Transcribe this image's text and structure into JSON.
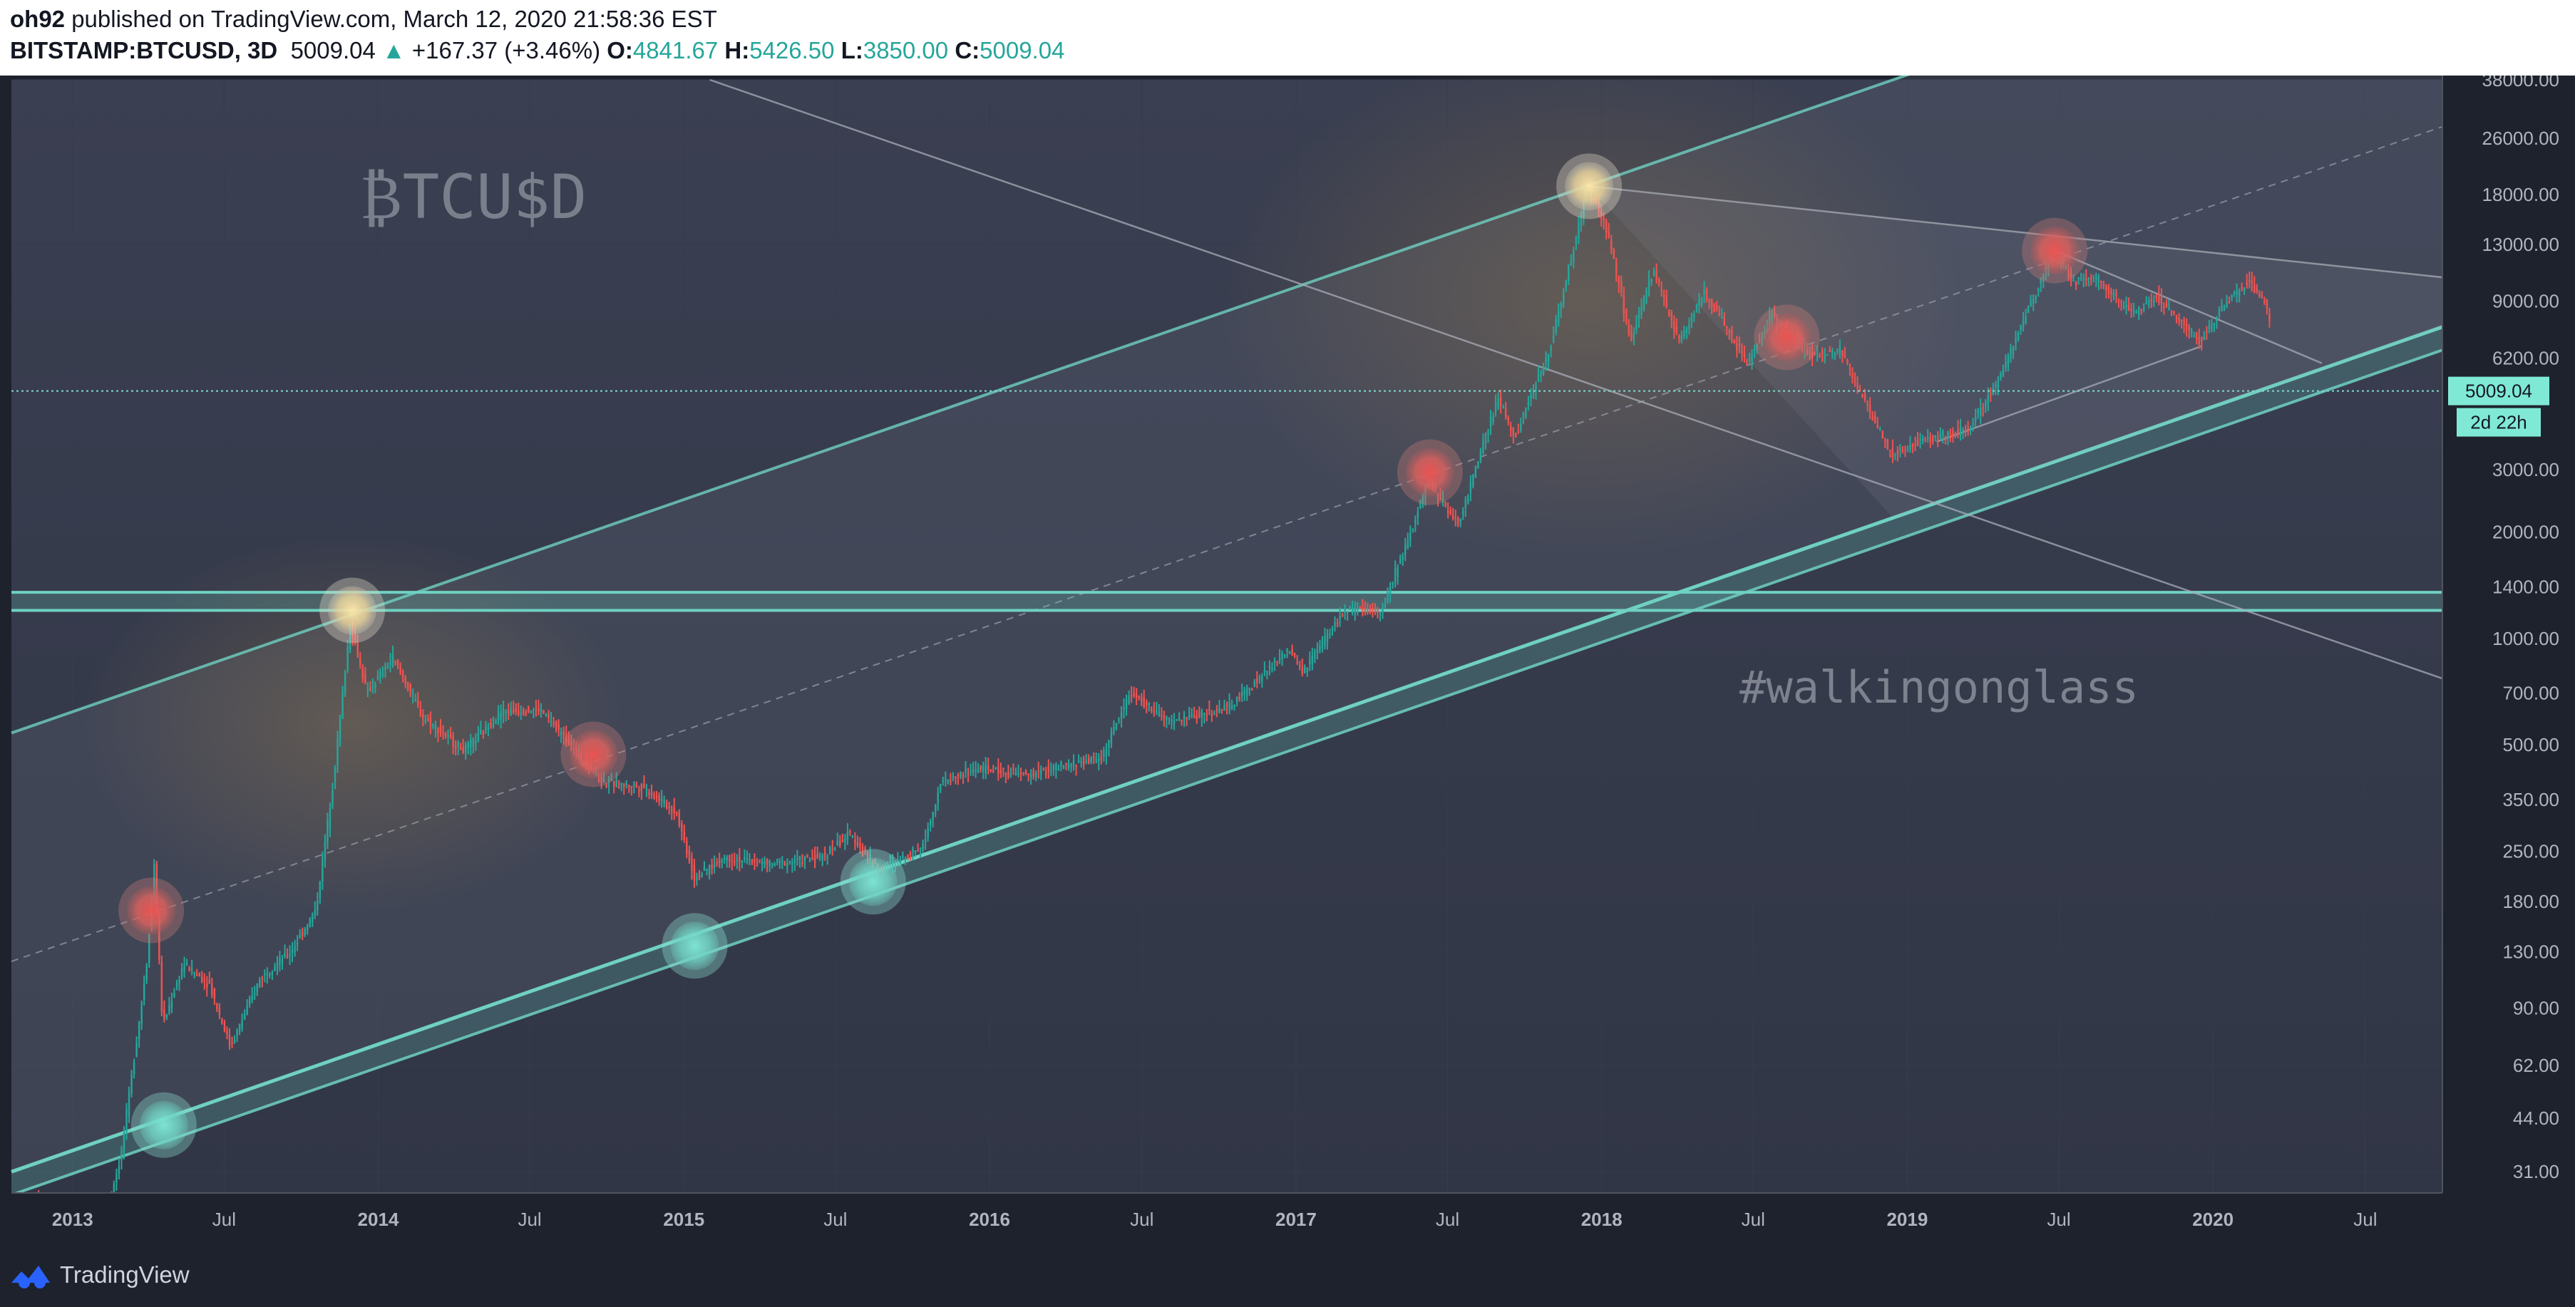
{
  "header": {
    "author": "oh92",
    "published_text": "published on TradingView.com, March 12, 2020 21:58:36 EST",
    "symbol": "BITSTAMP:BTCUSD, 3D",
    "last": "5009.04",
    "change": "+167.37 (+3.46%)",
    "o_label": "O:",
    "o_value": "4841.67",
    "h_label": "H:",
    "h_value": "5426.50",
    "l_label": "L:",
    "l_value": "3850.00",
    "c_label": "C:",
    "c_value": "5009.04"
  },
  "footer": {
    "brand": "TradingView",
    "logo_icon": "tradingview-logo-icon"
  },
  "chart_data": {
    "type": "candlestick",
    "symbol": "BTCUSD",
    "watermark": "₿TCU$D",
    "annotation": "#walkingonglass",
    "y_scale": "log",
    "ylim": [
      27,
      38000
    ],
    "xlim": [
      "2012-10-20",
      "2020-10-01"
    ],
    "y_ticks": [
      "38000.00",
      "26000.00",
      "18000.00",
      "13000.00",
      "9000.00",
      "6200.00",
      "3000.00",
      "2000.00",
      "1400.00",
      "1000.00",
      "700.00",
      "500.00",
      "350.00",
      "250.00",
      "180.00",
      "130.00",
      "90.00",
      "62.00",
      "44.00",
      "31.00"
    ],
    "x_ticks": [
      {
        "date": "2013-01-01",
        "label": "2013"
      },
      {
        "date": "2013-07-01",
        "label": "Jul"
      },
      {
        "date": "2014-01-01",
        "label": "2014"
      },
      {
        "date": "2014-07-01",
        "label": "Jul"
      },
      {
        "date": "2015-01-01",
        "label": "2015"
      },
      {
        "date": "2015-07-01",
        "label": "Jul"
      },
      {
        "date": "2016-01-01",
        "label": "2016"
      },
      {
        "date": "2016-07-01",
        "label": "Jul"
      },
      {
        "date": "2017-01-01",
        "label": "2017"
      },
      {
        "date": "2017-07-01",
        "label": "Jul"
      },
      {
        "date": "2018-01-01",
        "label": "2018"
      },
      {
        "date": "2018-07-01",
        "label": "Jul"
      },
      {
        "date": "2019-01-01",
        "label": "2019"
      },
      {
        "date": "2019-07-01",
        "label": "Jul"
      },
      {
        "date": "2020-01-01",
        "label": "2020"
      },
      {
        "date": "2020-07-01",
        "label": "Jul"
      }
    ],
    "last_price": 5009.04,
    "last_price_label": "5009.04",
    "countdown_label": "2d 22h",
    "price_path": [
      [
        "2012-11-20",
        27
      ],
      [
        "2013-01-15",
        14
      ],
      [
        "2013-03-01",
        34
      ],
      [
        "2013-04-01",
        120
      ],
      [
        "2013-04-10",
        230
      ],
      [
        "2013-04-20",
        80
      ],
      [
        "2013-05-15",
        120
      ],
      [
        "2013-06-15",
        105
      ],
      [
        "2013-07-10",
        70
      ],
      [
        "2013-08-15",
        110
      ],
      [
        "2013-09-20",
        130
      ],
      [
        "2013-10-20",
        170
      ],
      [
        "2013-11-10",
        400
      ],
      [
        "2013-11-30",
        1100
      ],
      [
        "2013-12-20",
        700
      ],
      [
        "2014-01-20",
        880
      ],
      [
        "2014-02-25",
        600
      ],
      [
        "2014-04-15",
        480
      ],
      [
        "2014-05-30",
        620
      ],
      [
        "2014-07-15",
        630
      ],
      [
        "2014-08-20",
        500
      ],
      [
        "2014-09-30",
        390
      ],
      [
        "2014-11-15",
        380
      ],
      [
        "2014-12-25",
        320
      ],
      [
        "2015-01-15",
        210
      ],
      [
        "2015-02-20",
        240
      ],
      [
        "2015-04-15",
        230
      ],
      [
        "2015-06-15",
        240
      ],
      [
        "2015-07-20",
        280
      ],
      [
        "2015-08-25",
        220
      ],
      [
        "2015-10-15",
        260
      ],
      [
        "2015-11-05",
        390
      ],
      [
        "2015-12-20",
        430
      ],
      [
        "2016-02-15",
        410
      ],
      [
        "2016-05-15",
        460
      ],
      [
        "2016-06-18",
        700
      ],
      [
        "2016-08-05",
        580
      ],
      [
        "2016-10-15",
        640
      ],
      [
        "2016-12-25",
        930
      ],
      [
        "2017-01-10",
        800
      ],
      [
        "2017-03-01",
        1200
      ],
      [
        "2017-04-15",
        1200
      ],
      [
        "2017-06-10",
        2800
      ],
      [
        "2017-07-15",
        2100
      ],
      [
        "2017-09-01",
        4800
      ],
      [
        "2017-09-20",
        3700
      ],
      [
        "2017-11-01",
        6500
      ],
      [
        "2017-12-17",
        19000
      ],
      [
        "2018-01-10",
        14000
      ],
      [
        "2018-02-06",
        6900
      ],
      [
        "2018-03-05",
        11000
      ],
      [
        "2018-04-05",
        6900
      ],
      [
        "2018-05-05",
        9600
      ],
      [
        "2018-06-25",
        6000
      ],
      [
        "2018-07-25",
        8200
      ],
      [
        "2018-09-10",
        6300
      ],
      [
        "2018-10-15",
        6500
      ],
      [
        "2018-11-20",
        4300
      ],
      [
        "2018-12-15",
        3300
      ],
      [
        "2019-01-15",
        3600
      ],
      [
        "2019-03-15",
        3900
      ],
      [
        "2019-04-20",
        5300
      ],
      [
        "2019-06-26",
        12500
      ],
      [
        "2019-07-20",
        10200
      ],
      [
        "2019-08-15",
        10500
      ],
      [
        "2019-09-30",
        8300
      ],
      [
        "2019-10-26",
        9300
      ],
      [
        "2019-12-18",
        6900
      ],
      [
        "2020-01-15",
        8700
      ],
      [
        "2020-02-13",
        10200
      ],
      [
        "2020-03-05",
        9000
      ],
      [
        "2020-03-10",
        7900
      ],
      [
        "2020-03-12",
        5009
      ]
    ],
    "channel": {
      "upper": [
        [
          "2012-10-20",
          540
        ],
        [
          "2018-12-15",
          38000
        ]
      ],
      "lower_support": [
        [
          "2012-10-20",
          31
        ],
        [
          "2020-10-01",
          7600
        ]
      ],
      "lower_band_offset": 0.86,
      "midline": [
        [
          "2012-10-20",
          122
        ],
        [
          "2020-10-01",
          28000
        ]
      ]
    },
    "horizontal_band": [
      1200,
      1350
    ],
    "trendlines": [
      {
        "name": "descending-resistance",
        "points": [
          [
            "2017-12-17",
            19000
          ],
          [
            "2020-10-01",
            10500
          ]
        ]
      },
      {
        "name": "long-diagonal",
        "points": [
          [
            "2015-02-01",
            38000
          ],
          [
            "2020-10-01",
            770
          ]
        ]
      },
      {
        "name": "triangle-top",
        "points": [
          [
            "2019-06-26",
            12500
          ],
          [
            "2020-05-10",
            6000
          ]
        ]
      },
      {
        "name": "triangle-bottom",
        "points": [
          [
            "2019-02-05",
            3600
          ],
          [
            "2019-12-18",
            6700
          ]
        ]
      }
    ],
    "markers": [
      {
        "date": "2013-04-20",
        "price": 42,
        "kind": "teal"
      },
      {
        "date": "2013-04-05",
        "price": 170,
        "kind": "red"
      },
      {
        "date": "2013-12-01",
        "price": 1200,
        "kind": "yellow"
      },
      {
        "date": "2014-09-15",
        "price": 470,
        "kind": "red"
      },
      {
        "date": "2015-01-14",
        "price": 135,
        "kind": "teal"
      },
      {
        "date": "2015-08-15",
        "price": 205,
        "kind": "teal"
      },
      {
        "date": "2017-06-10",
        "price": 2950,
        "kind": "red"
      },
      {
        "date": "2017-12-17",
        "price": 19000,
        "kind": "yellow"
      },
      {
        "date": "2018-08-10",
        "price": 7100,
        "kind": "red"
      },
      {
        "date": "2019-06-26",
        "price": 12500,
        "kind": "red"
      }
    ],
    "colors": {
      "up": "#26a69a",
      "down": "#ef5350",
      "channel": "#6fd1c2",
      "price_line": "#7fd9cd",
      "grid": "#363c4e",
      "text": "#b2b5be"
    }
  }
}
